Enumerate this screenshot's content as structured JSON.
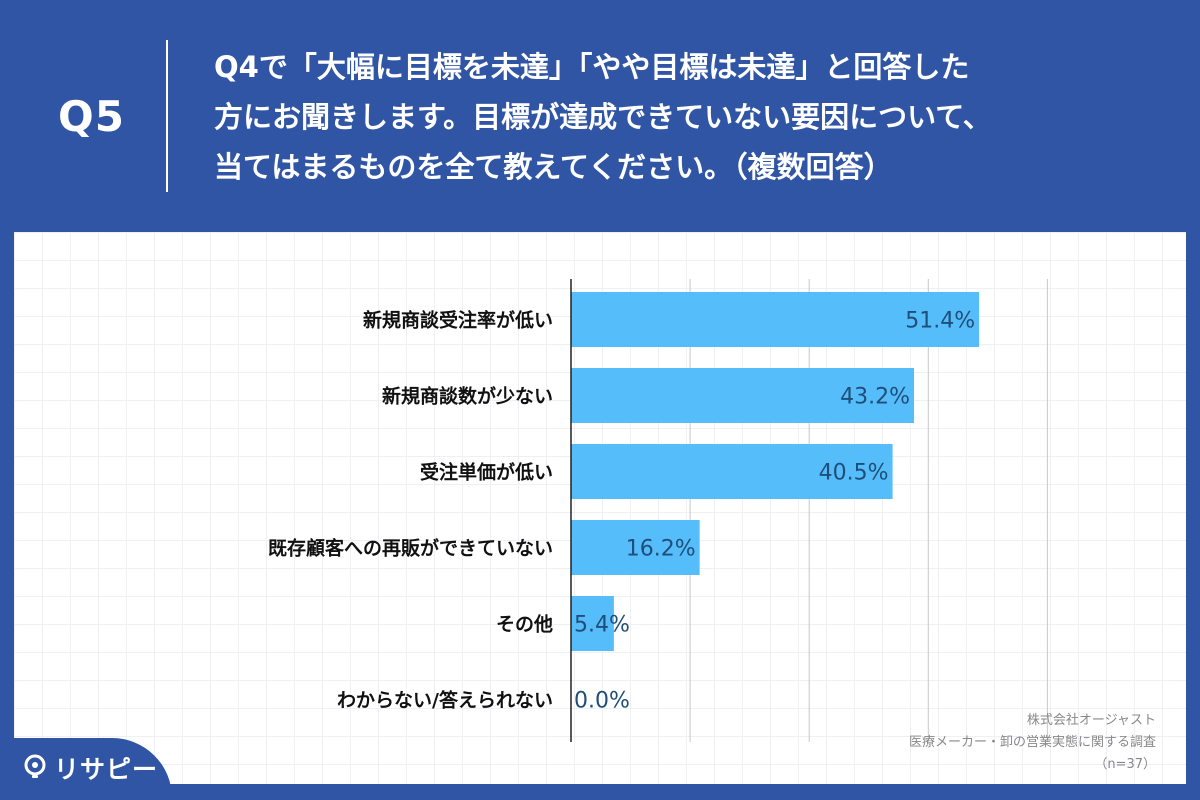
{
  "header": {
    "question_number": "Q5",
    "question_text": "Q4で「大幅に目標を未達」「やや目標は未達」と回答した\n方にお聞きします。目標が達成できていない要因について、\n当てはまるものを全て教えてください。（複数回答）"
  },
  "footer": {
    "company": "株式会社オージャスト",
    "survey": "医療メーカー・卸の営業実態に関する調査",
    "sample": "（n=37）"
  },
  "logo": {
    "icon": "lightbulb-icon",
    "text": "リサピー"
  },
  "colors": {
    "header_bg": "#2f55a4",
    "bar": "#56bdfb",
    "value_text": "#1f4e79"
  },
  "chart_data": {
    "type": "bar",
    "orientation": "horizontal",
    "categories": [
      "新規商談受注率が低い",
      "新規商談数が少ない",
      "受注単価が低い",
      "既存顧客への再販ができていない",
      "その他",
      "わからない/答えられない"
    ],
    "values": [
      51.4,
      43.2,
      40.5,
      16.2,
      5.4,
      0.0
    ],
    "value_labels": [
      "51.4%",
      "43.2%",
      "40.5%",
      "16.2%",
      "5.4%",
      "0.0%"
    ],
    "xlim": [
      0,
      60
    ],
    "grid": true
  }
}
